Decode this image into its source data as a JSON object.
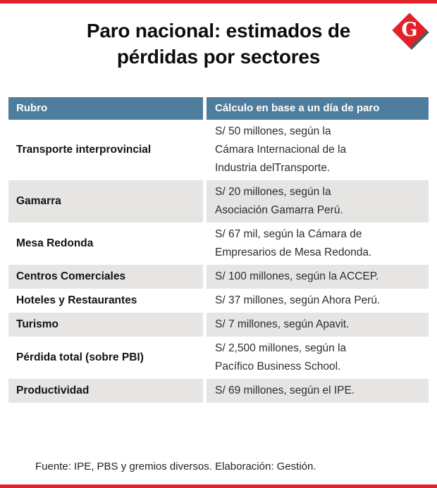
{
  "header": {
    "title_line1": "Paro nacional: estimados de",
    "title_line2": "pérdidas por sectores",
    "logo_letter": "G"
  },
  "chart_data": {
    "type": "table",
    "title": "Paro nacional: estimados de pérdidas por sectores",
    "columns": [
      "Rubro",
      "Cálculo en base a un día de paro"
    ],
    "rows": [
      {
        "rubro": "Transporte interprovincial",
        "calculo": "S/ 50 millones, según la\nCámara Internacional de la\nIndustria delTransporte."
      },
      {
        "rubro": "Gamarra",
        "calculo": "S/ 20 millones, según la\nAsociación Gamarra Perú."
      },
      {
        "rubro": "Mesa Redonda",
        "calculo": "S/ 67 mil, según la Cámara de\nEmpresarios de Mesa Redonda."
      },
      {
        "rubro": "Centros Comerciales",
        "calculo": "S/ 100 millones, según la ACCEP."
      },
      {
        "rubro": "Hoteles y Restaurantes",
        "calculo": "S/ 37 millones, según Ahora Perú."
      },
      {
        "rubro": "Turismo",
        "calculo": "S/ 7 millones, según Apavit."
      },
      {
        "rubro": "Pérdida total (sobre PBI)",
        "calculo": "S/ 2,500 millones, según la\nPacífico Business School."
      },
      {
        "rubro": "Productividad",
        "calculo": "S/ 69 millones, según el IPE."
      }
    ],
    "source": "Fuente: IPE, PBS y gremios diversos. Elaboración: Gestión."
  },
  "colors": {
    "accent_red": "#e32129",
    "header_blue": "#4e7d9e",
    "row_alt_gray": "#e6e5e4"
  }
}
